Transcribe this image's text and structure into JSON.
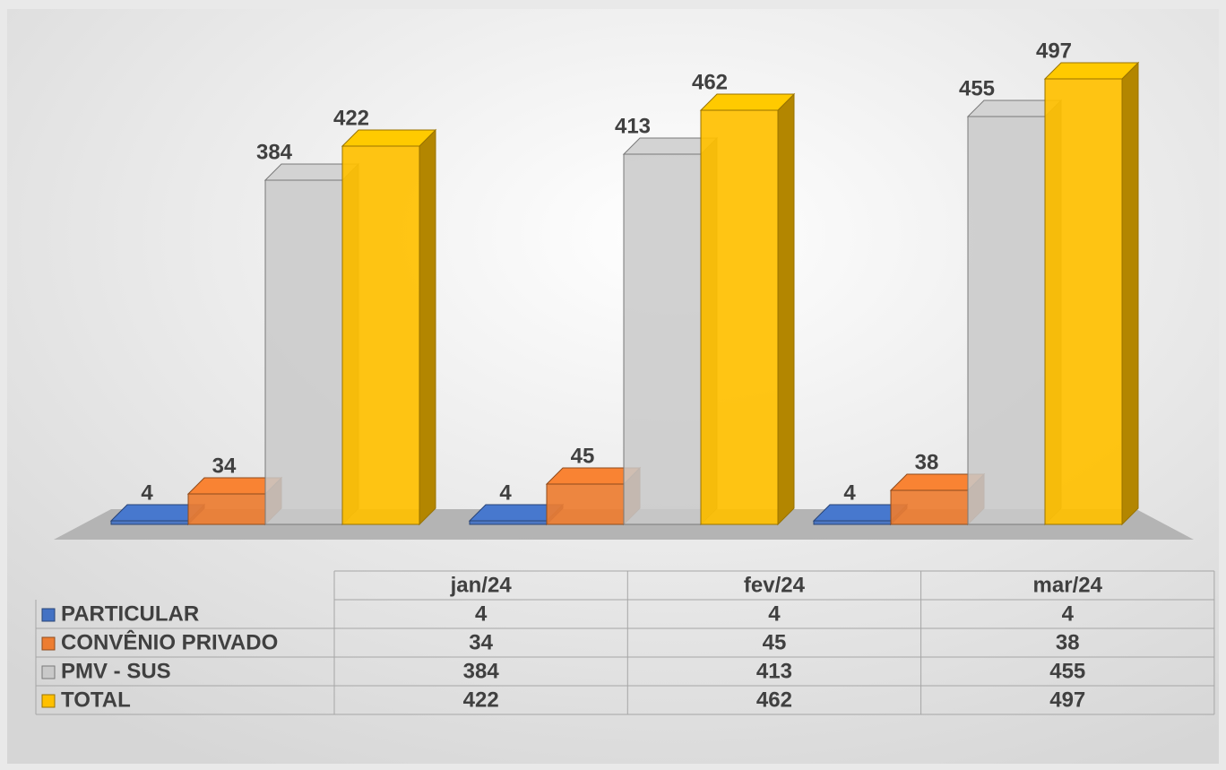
{
  "chart_data": {
    "type": "bar",
    "categories": [
      "jan/24",
      "fev/24",
      "mar/24"
    ],
    "series": [
      {
        "name": "PARTICULAR",
        "color": "#4472c4",
        "values": [
          4,
          4,
          4
        ]
      },
      {
        "name": "CONVÊNIO PRIVADO",
        "color": "#ed7d31",
        "values": [
          34,
          45,
          38
        ]
      },
      {
        "name": "PMV - SUS",
        "color": "#c9c9c9",
        "values": [
          384,
          413,
          455
        ]
      },
      {
        "name": "TOTAL",
        "color": "#ffc000",
        "values": [
          422,
          462,
          497
        ]
      }
    ],
    "data_table": true
  }
}
